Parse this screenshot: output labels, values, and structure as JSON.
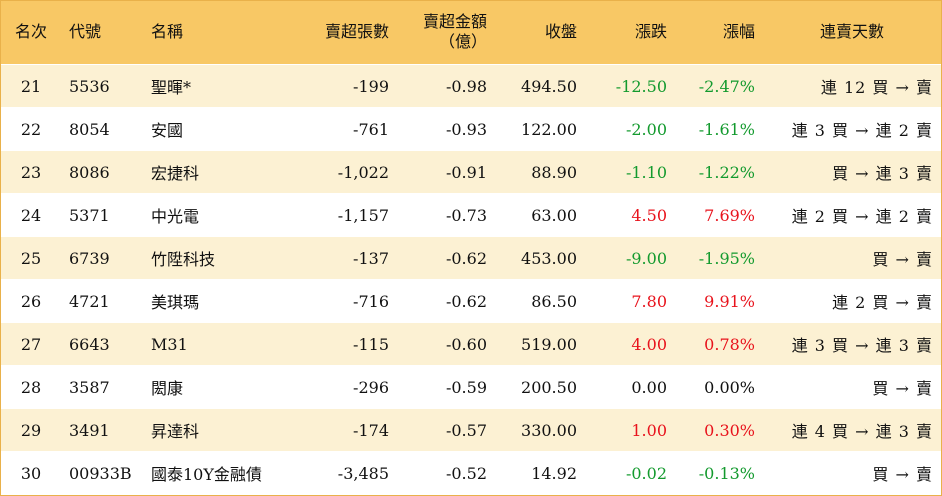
{
  "headers": {
    "rank": "名次",
    "code": "代號",
    "name": "名稱",
    "net_sell_lots": "賣超張數",
    "net_sell_amount": "賣超金額",
    "net_sell_amount_unit": "（億）",
    "close": "收盤",
    "change": "漲跌",
    "change_pct": "漲幅",
    "consecutive": "連賣天數"
  },
  "rows": [
    {
      "rank": "21",
      "code": "5536",
      "name": "聖暉*",
      "lots": "-199",
      "amount": "-0.98",
      "close": "494.50",
      "change": "-12.50",
      "change_pct": "-2.47%",
      "trend": "連 12 買 → 賣",
      "dir": "down"
    },
    {
      "rank": "22",
      "code": "8054",
      "name": "安國",
      "lots": "-761",
      "amount": "-0.93",
      "close": "122.00",
      "change": "-2.00",
      "change_pct": "-1.61%",
      "trend": "連 3 買 → 連 2 賣",
      "dir": "down"
    },
    {
      "rank": "23",
      "code": "8086",
      "name": "宏捷科",
      "lots": "-1,022",
      "amount": "-0.91",
      "close": "88.90",
      "change": "-1.10",
      "change_pct": "-1.22%",
      "trend": "買 → 連 3 賣",
      "dir": "down"
    },
    {
      "rank": "24",
      "code": "5371",
      "name": "中光電",
      "lots": "-1,157",
      "amount": "-0.73",
      "close": "63.00",
      "change": "4.50",
      "change_pct": "7.69%",
      "trend": "連 2 買 → 連 2 賣",
      "dir": "up"
    },
    {
      "rank": "25",
      "code": "6739",
      "name": "竹陞科技",
      "lots": "-137",
      "amount": "-0.62",
      "close": "453.00",
      "change": "-9.00",
      "change_pct": "-1.95%",
      "trend": "買 → 賣",
      "dir": "down"
    },
    {
      "rank": "26",
      "code": "4721",
      "name": "美琪瑪",
      "lots": "-716",
      "amount": "-0.62",
      "close": "86.50",
      "change": "7.80",
      "change_pct": "9.91%",
      "trend": "連 2 買 → 賣",
      "dir": "up"
    },
    {
      "rank": "27",
      "code": "6643",
      "name": "M31",
      "lots": "-115",
      "amount": "-0.60",
      "close": "519.00",
      "change": "4.00",
      "change_pct": "0.78%",
      "trend": "連 3 買 → 連 3 賣",
      "dir": "up"
    },
    {
      "rank": "28",
      "code": "3587",
      "name": "閎康",
      "lots": "-296",
      "amount": "-0.59",
      "close": "200.50",
      "change": "0.00",
      "change_pct": "0.00%",
      "trend": "買 → 賣",
      "dir": "flat"
    },
    {
      "rank": "29",
      "code": "3491",
      "name": "昇達科",
      "lots": "-174",
      "amount": "-0.57",
      "close": "330.00",
      "change": "1.00",
      "change_pct": "0.30%",
      "trend": "連 4 買 → 連 3 賣",
      "dir": "up"
    },
    {
      "rank": "30",
      "code": "00933B",
      "name": "國泰10Y金融債",
      "lots": "-3,485",
      "amount": "-0.52",
      "close": "14.92",
      "change": "-0.02",
      "change_pct": "-0.13%",
      "trend": "買 → 賣",
      "dir": "down"
    }
  ],
  "colors": {
    "header_bg": "#f8c865",
    "row_alt_bg": "#fcf1d3",
    "up": "#e8131c",
    "down": "#139a2e",
    "border": "#e9b14a"
  }
}
